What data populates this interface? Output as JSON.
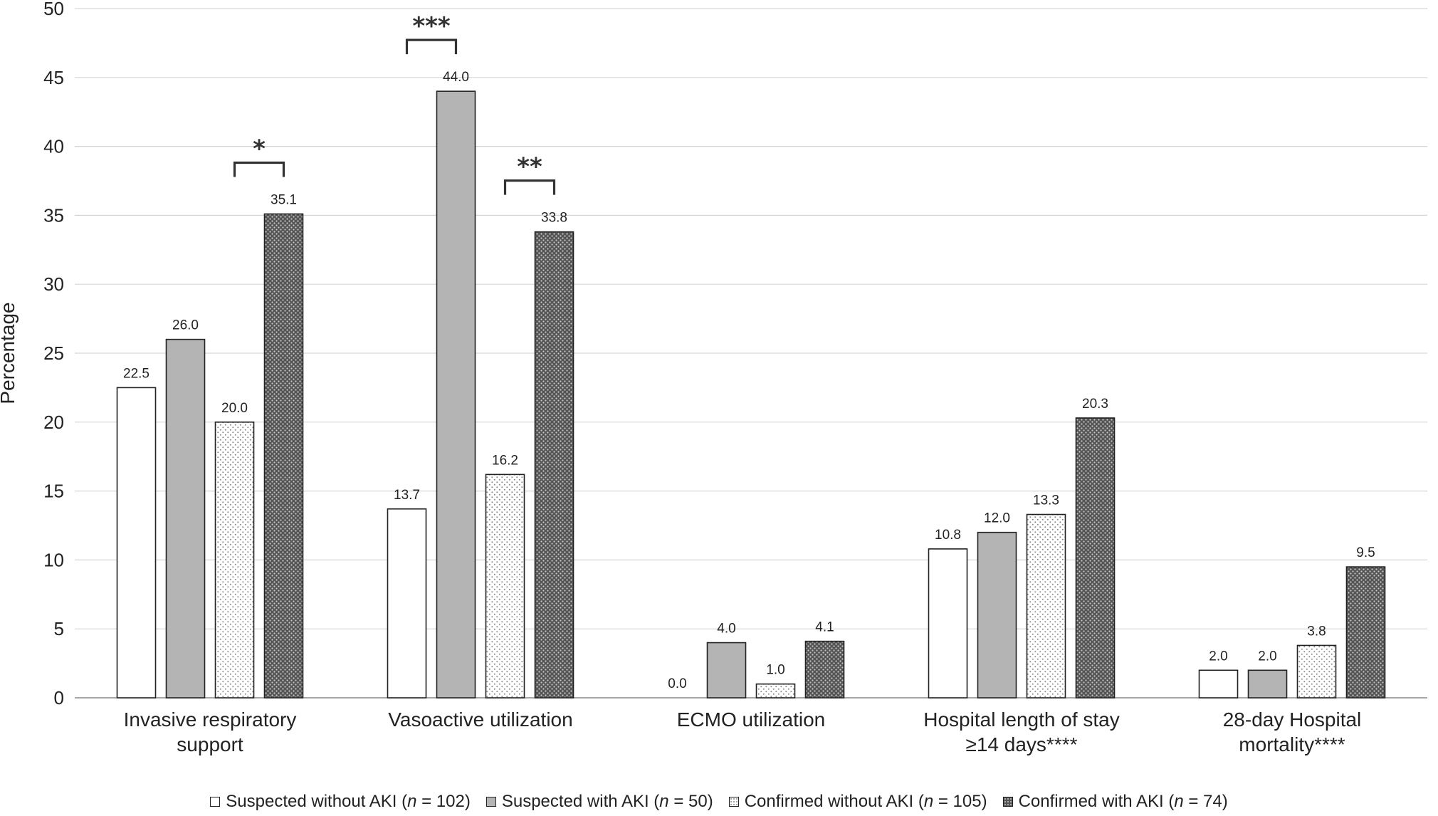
{
  "chart_data": {
    "type": "bar",
    "ylabel": "Percentage",
    "xlabel": "",
    "title": "",
    "ylim": [
      0,
      50
    ],
    "yticks": [
      "0",
      "5",
      "10",
      "15",
      "20",
      "25",
      "30",
      "35",
      "40",
      "45",
      "50"
    ],
    "grid": true,
    "legend_position": "bottom",
    "categories": [
      [
        "Invasive respiratory",
        "support"
      ],
      [
        "Vasoactive utilization"
      ],
      [
        "ECMO utilization"
      ],
      [
        "Hospital length of stay",
        "≥14 days****"
      ],
      [
        "28-day Hospital",
        "mortality****"
      ]
    ],
    "series": [
      {
        "name": "Suspected without AKI",
        "n_label": "n",
        "n_value": "= 102)",
        "pattern": "white",
        "color": "#ffffff",
        "values": [
          22.5,
          13.7,
          0.0,
          10.8,
          2.0
        ],
        "labels": [
          "22.5",
          "13.7",
          "0.0",
          "10.8",
          "2.0"
        ]
      },
      {
        "name": "Suspected with AKI",
        "n_label": "n",
        "n_value": "= 50)",
        "pattern": "gray",
        "color": "#b4b4b4",
        "values": [
          26.0,
          44.0,
          4.0,
          12.0,
          2.0
        ],
        "labels": [
          "26.0",
          "44.0",
          "4.0",
          "12.0",
          "2.0"
        ]
      },
      {
        "name": "Confirmed without AKI",
        "n_label": "n",
        "n_value": "= 105)",
        "pattern": "light-dots",
        "color": "#ffffff",
        "values": [
          20.0,
          16.2,
          1.0,
          13.3,
          3.8
        ],
        "labels": [
          "20.0",
          "16.2",
          "1.0",
          "13.3",
          "3.8"
        ]
      },
      {
        "name": "Confirmed with AKI",
        "n_label": "n",
        "n_value": "= 74)",
        "pattern": "dark-dots",
        "color": "#6e6e6e",
        "values": [
          35.1,
          33.8,
          4.1,
          20.3,
          9.5
        ],
        "labels": [
          "35.1",
          "33.8",
          "4.1",
          "20.3",
          "9.5"
        ]
      }
    ],
    "significance": [
      {
        "category": 0,
        "from_series": 2,
        "to_series": 3,
        "label": "*"
      },
      {
        "category": 1,
        "from_series": 0,
        "to_series": 1,
        "label": "***"
      },
      {
        "category": 1,
        "from_series": 2,
        "to_series": 3,
        "label": "**"
      }
    ]
  }
}
